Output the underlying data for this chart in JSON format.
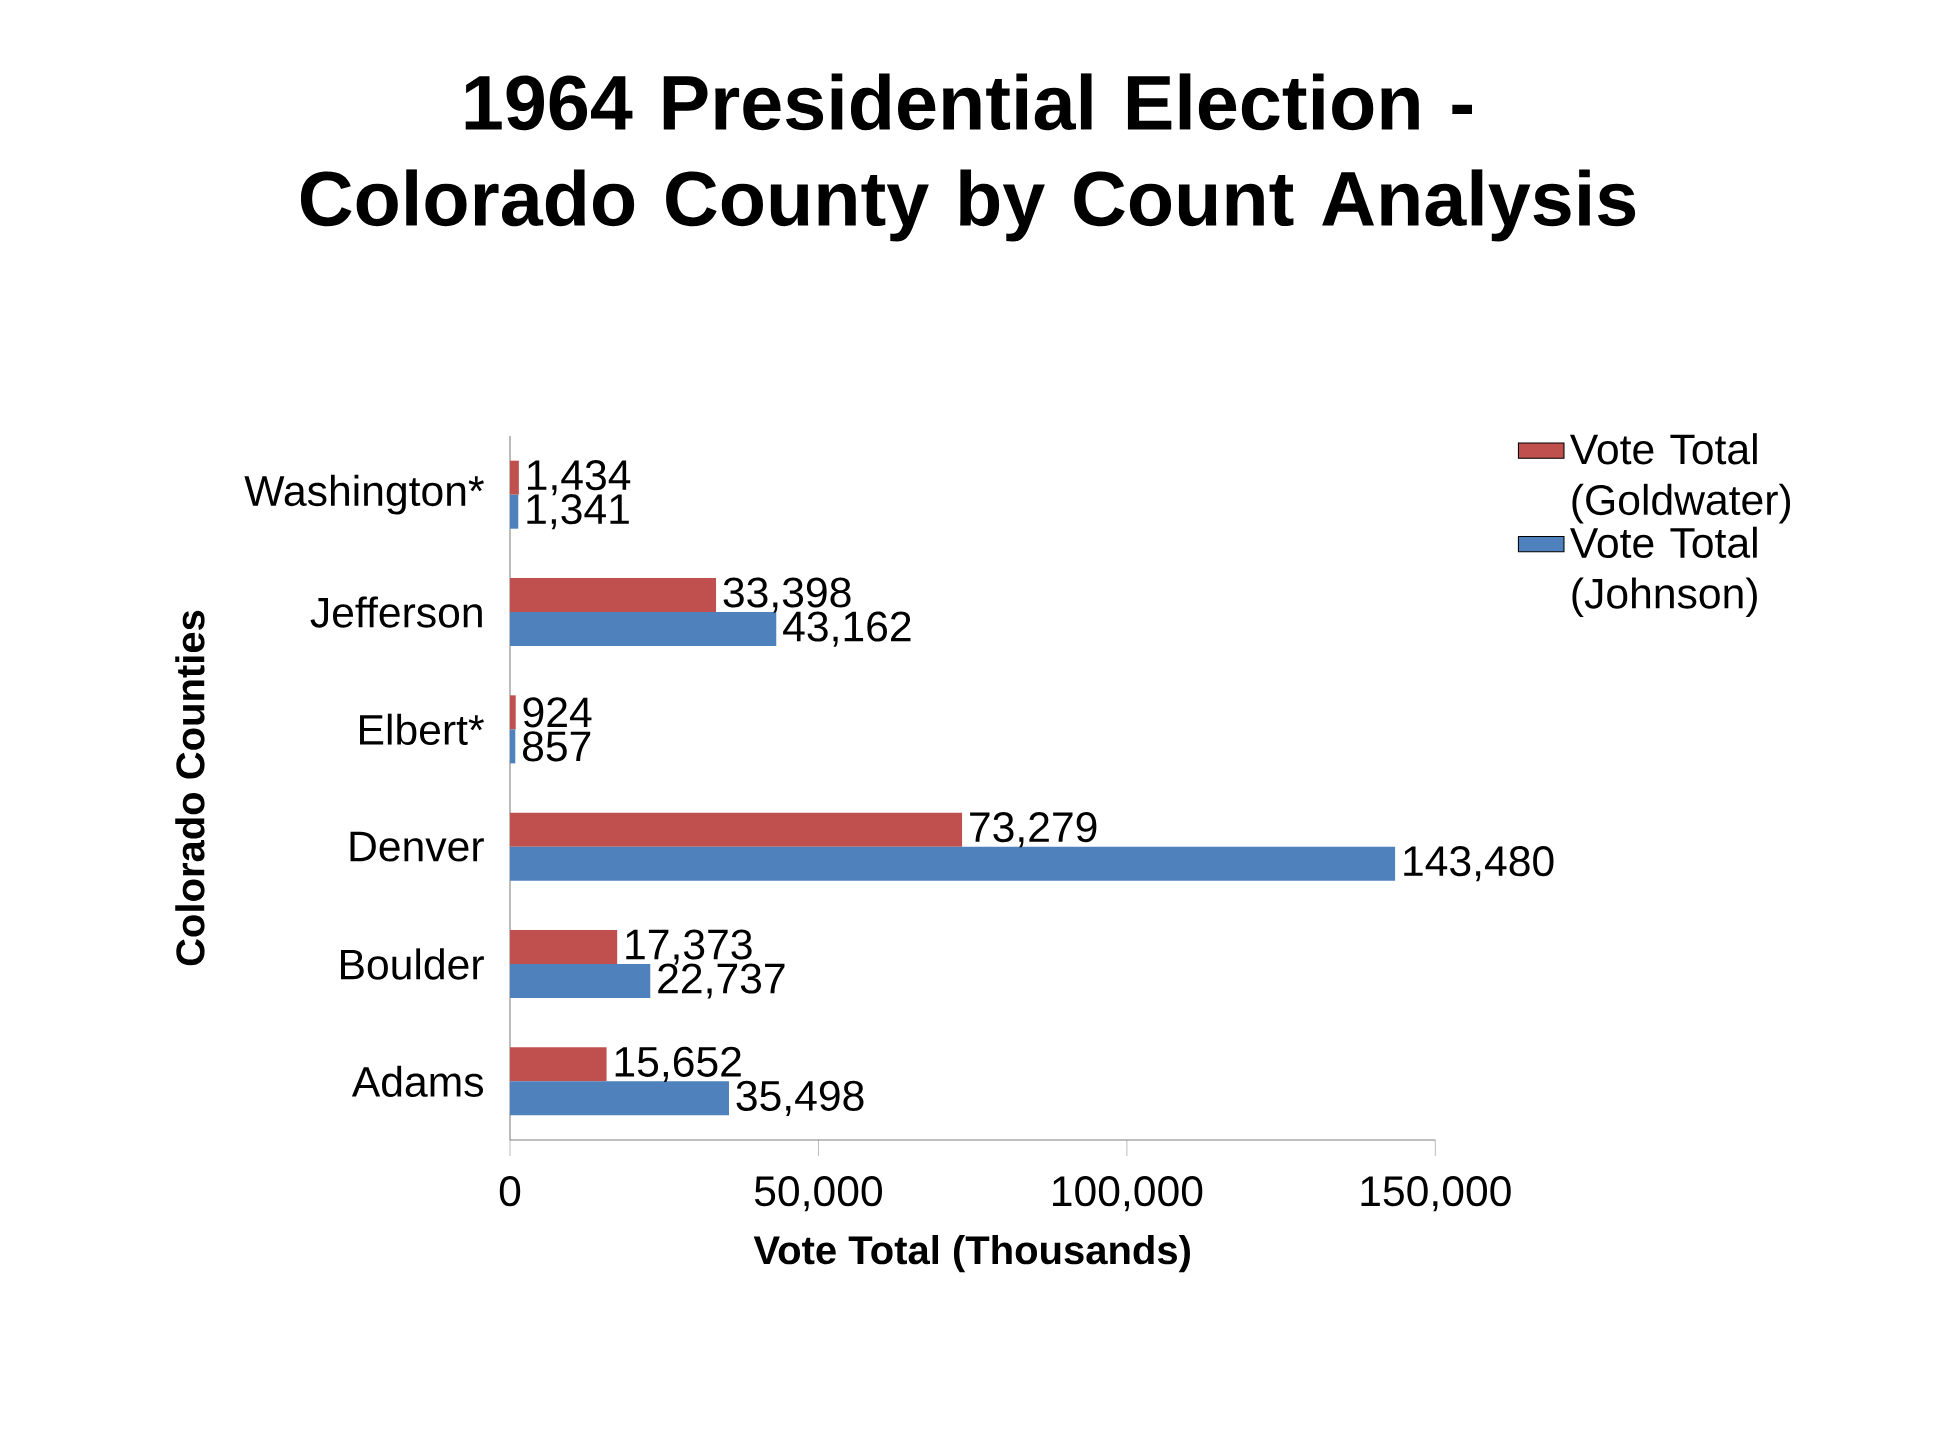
{
  "chart_data": {
    "type": "bar",
    "orientation": "horizontal",
    "title": "1964 Presidential Election - Colorado County by Count Analysis",
    "xlabel": "Vote Total (Thousands)",
    "ylabel": "Colorado Counties",
    "categories": [
      "Washington*",
      "Jefferson",
      "Elbert*",
      "Denver",
      "Boulder",
      "Adams"
    ],
    "series": [
      {
        "name": "Vote Total (Goldwater)",
        "color": "#c0504d",
        "values": [
          1434,
          33398,
          924,
          73279,
          17373,
          15652
        ],
        "value_labels": [
          "1,434",
          "33,398",
          "924",
          "73,279",
          "17,373",
          "15,652"
        ]
      },
      {
        "name": "Vote Total (Johnson)",
        "color": "#4f81bd",
        "values": [
          1341,
          43162,
          857,
          143480,
          22737,
          35498
        ],
        "value_labels": [
          "1,341",
          "43,162",
          "857",
          "143,480",
          "22,737",
          "35,498"
        ]
      }
    ],
    "xlim": [
      0,
      150000
    ],
    "xticks": [
      0,
      {
        "value": 50000,
        "label": "50,000"
      },
      {
        "value": 100000,
        "label": "100,000"
      },
      {
        "value": 150000,
        "label": "150,000"
      }
    ],
    "grid": false,
    "legend": "right"
  }
}
